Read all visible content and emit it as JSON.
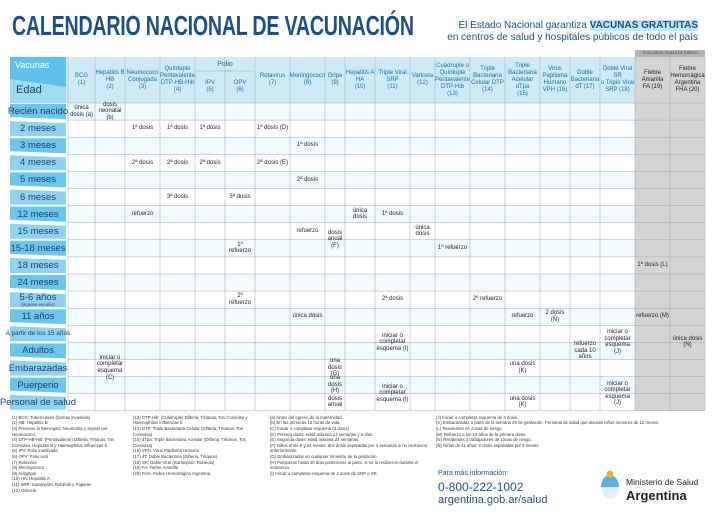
{
  "header": {
    "title": "CALENDARIO NACIONAL DE VACUNACIÓN",
    "subtitle_1": "El Estado Nacional garantiza",
    "subtitle_highlight": "VACUNAS GRATUITAS",
    "subtitle_2": "en centros de salud y hospitales públicos de todo el país"
  },
  "table": {
    "corner_top": "Vacunas",
    "corner_bottom": "Edad",
    "polio_group": "Polio",
    "risk_zone": "EXCLUSIVO ZONAS DE RIESGO",
    "columns": [
      [
        "BCG",
        "(1)"
      ],
      [
        "Hepatitis B",
        "HB",
        "(2)"
      ],
      [
        "Neumococo",
        "Conjugada",
        "(3)"
      ],
      [
        "Quíntuple",
        "Pentavalente",
        "DTP-HB-Hib",
        "(4)"
      ],
      [
        "IPV",
        "(5)"
      ],
      [
        "OPV",
        "(6)"
      ],
      [
        "Rotavirus",
        "(7)"
      ],
      [
        "Meningococo",
        "(8)"
      ],
      [
        "Gripe",
        "(9)"
      ],
      [
        "Hepatitis A",
        "HA",
        "(10)"
      ],
      [
        "Triple Viral",
        "SRP",
        "(11)"
      ],
      [
        "Varicela",
        "(12)"
      ],
      [
        "Cuádruple o",
        "Quíntuple",
        "Pentavalente",
        "DTP-Hib (13)"
      ],
      [
        "Triple",
        "Bacteriana",
        "Celular DTP",
        "(14)"
      ],
      [
        "Triple",
        "Bacteriana",
        "Acelular dTpa",
        "(15)"
      ],
      [
        "Virus",
        "Papiloma",
        "Humano",
        "VPH (16)"
      ],
      [
        "Doble",
        "Bacteriana",
        "dT (17)"
      ],
      [
        "Doble Viral",
        "SR",
        "o Triple Viral",
        "SRP (18)"
      ],
      [
        "Fiebre",
        "Amarilla",
        "FA (19)"
      ],
      [
        "Fiebre",
        "Hemorrágica",
        "Argentina",
        "FHA (20)"
      ]
    ],
    "rows": [
      {
        "label": "Recién nacido",
        "cells": [
          "única dosis (a)",
          "dosis neonatal (b)",
          null,
          null,
          null,
          null,
          null,
          null,
          null,
          null,
          null,
          null,
          null,
          null,
          null,
          null,
          null,
          null,
          null,
          null
        ]
      },
      {
        "label": "2 meses",
        "cells": [
          null,
          null,
          "1ª dosis",
          "1ª dosis",
          "1ª dosis",
          null,
          "1ª dosis (D)",
          null,
          null,
          null,
          null,
          null,
          null,
          null,
          null,
          null,
          null,
          null,
          null,
          null
        ]
      },
      {
        "label": "3 meses",
        "cells": [
          null,
          null,
          null,
          null,
          null,
          null,
          null,
          "1ª dosis",
          null,
          null,
          null,
          null,
          null,
          null,
          null,
          null,
          null,
          null,
          null,
          null
        ]
      },
      {
        "label": "4 meses",
        "cells": [
          null,
          null,
          "2ª dosis",
          "2ª dosis",
          "2ª dosis",
          null,
          "2ª dosis (E)",
          null,
          null,
          null,
          null,
          null,
          null,
          null,
          null,
          null,
          null,
          null,
          null,
          null
        ]
      },
      {
        "label": "5 meses",
        "cells": [
          null,
          null,
          null,
          null,
          null,
          null,
          null,
          "2ª dosis",
          null,
          null,
          null,
          null,
          null,
          null,
          null,
          null,
          null,
          null,
          null,
          null
        ]
      },
      {
        "label": "6 meses",
        "cells": [
          null,
          null,
          null,
          "3ª dosis",
          null,
          "3ª dosis",
          null,
          null,
          null,
          null,
          null,
          null,
          null,
          null,
          null,
          null,
          null,
          null,
          null,
          null
        ]
      },
      {
        "label": "12 meses",
        "cells": [
          null,
          null,
          "refuerzo",
          null,
          null,
          null,
          null,
          null,
          null,
          "única dosis",
          "1ª dosis",
          null,
          null,
          null,
          null,
          null,
          null,
          null,
          null,
          null
        ]
      },
      {
        "label": "15 meses",
        "cells": [
          null,
          null,
          null,
          null,
          null,
          null,
          null,
          "refuerzo",
          "dosis anual (F)",
          null,
          null,
          "única dosis",
          null,
          null,
          null,
          null,
          null,
          null,
          null,
          null
        ]
      },
      {
        "label": "15-18 meses",
        "cells": [
          null,
          null,
          null,
          null,
          null,
          "1º refuerzo",
          null,
          null,
          null,
          null,
          null,
          null,
          "1º refuerzo",
          null,
          null,
          null,
          null,
          null,
          null,
          null
        ]
      },
      {
        "label": "18 meses",
        "cells": [
          null,
          null,
          null,
          null,
          null,
          null,
          null,
          null,
          null,
          null,
          null,
          null,
          null,
          null,
          null,
          null,
          null,
          null,
          "1ª dosis (L)",
          null
        ]
      },
      {
        "label": "24 meses",
        "cells": [
          null,
          null,
          null,
          null,
          null,
          null,
          null,
          null,
          null,
          null,
          null,
          null,
          null,
          null,
          null,
          null,
          null,
          null,
          null,
          null
        ]
      },
      {
        "label": "5-6 años",
        "sublabel": "(ingreso escolar)",
        "cells": [
          null,
          null,
          null,
          null,
          null,
          "2º refuerzo",
          null,
          null,
          null,
          null,
          "2ª dosis",
          null,
          null,
          "2º refuerzo",
          null,
          null,
          null,
          null,
          null,
          null
        ]
      },
      {
        "label": "11 años",
        "cells": [
          null,
          null,
          null,
          null,
          null,
          null,
          null,
          "única dosis",
          null,
          null,
          null,
          null,
          null,
          null,
          "refuerzo",
          "2 dosis (Ñ)",
          null,
          null,
          "refuerzo (M)",
          null
        ]
      },
      {
        "label": "A partir de los 15 años",
        "cells": [
          null,
          null,
          null,
          null,
          null,
          null,
          null,
          null,
          null,
          null,
          "iniciar o completar esquema (I)",
          null,
          null,
          null,
          null,
          null,
          null,
          "iniciar o completar esquema (J)",
          null,
          "única dosis (N)"
        ]
      },
      {
        "label": "Adultos",
        "cells": [
          null,
          "iniciar o completar esquema (C)",
          null,
          null,
          null,
          null,
          null,
          null,
          null,
          null,
          null,
          null,
          null,
          null,
          null,
          null,
          "refuerzo cada 10 años",
          null,
          null,
          null
        ]
      },
      {
        "label": "Embarazadas",
        "cells": [
          null,
          null,
          null,
          null,
          null,
          null,
          null,
          null,
          "una dosis (G)",
          null,
          null,
          null,
          null,
          null,
          "una dosis (K)",
          null,
          null,
          null,
          null,
          null
        ]
      },
      {
        "label": "Puerperio",
        "cells": [
          null,
          null,
          null,
          null,
          null,
          null,
          null,
          null,
          "una dosis (H)",
          null,
          "iniciar o completar esquema (I)",
          null,
          null,
          null,
          null,
          null,
          null,
          "iniciar o completar esquema (J)",
          null,
          null
        ]
      },
      {
        "label": "Personal de salud",
        "cells": [
          null,
          null,
          null,
          null,
          null,
          null,
          null,
          null,
          "dosis anual",
          null,
          null,
          null,
          null,
          null,
          "una dosis (K)",
          null,
          null,
          null,
          null,
          null
        ]
      }
    ]
  },
  "footnotes": [
    [
      "(1) BCG: Tuberculosis (formas invasivas)",
      "(2) HB: Hepatitis B",
      "(3) Previene la Meningitis, Neumonía y Sepsis por Neumococo.",
      "(4) DTP-HB-Hib: (Pentavalente) Difteria, Tétanos, Tos Convulsa, Hepatitis B y Haemophilus influenzae b",
      "(5) IPV: Polio inactivada",
      "(6) OPV: Polio oral",
      "(7) Rotavirus",
      "(8) Meningococo",
      "(9) Antigripal",
      "(10) HA: Hepatitis A",
      "(11) SRP: Sarampión, Rubéola y Paperas",
      "(12) Varicela"
    ],
    [
      "(13) DTP-Hib: (Cuádruple) Difteria, Tétanos, Tos Convulsa y Haemophilus influenzae b",
      "(14) DTP: Triple Bacteriana Celular (Difteria, Tétanos, Tos Convulsa)",
      "(15) dTpa: Triple Bacteriana Acelular (Difteria, Tétanos, Tos Convulsa)",
      "(16) VPH: Virus Papiloma Humano",
      "(17) dT: Doble Bacteriana (Difteria, Tétanos)",
      "(18) SR: Doble Viral (Sarampión, Rubéola)",
      "(19) FA: Fiebre Amarilla",
      "(20) FHA: Fiebre Hemorrágica Argentina"
    ],
    [
      "(a) Antes del egreso de la maternidad.",
      "(b) En las primeras 12 horas de vida.",
      "(C) Iniciar o completar esquema (3 dosis).",
      "(D) Primera dosis: edad máxima 14 semanas y 6 días.",
      "(E) Segunda dosis: edad máxima 24 semanas.",
      "(F) Niños entre 6 y 24 meses: dos dosis separadas por 4 semanas si no recibieron anteriormente.",
      "(G) Embarazadas en cualquier trimestre de la gestación.",
      "(H) Puérperas hasta 10 días posteriores al parto, si no la recibieron durante el embarazo.",
      "(I) Iniciar o completar esquema de 2 dosis de SRP o SR."
    ],
    [
      "(J) Iniciar o completar esquema de 3 dosis.",
      "(K) Embarazadas a partir de la semana 20 de gestación. Personal de salud que atiende niños menores de 12 meses.",
      "(L) Residentes en zonas de riesgo.",
      "(M) Refuerzo a los 10 años de la primera dosis.",
      "(N) Residentes o trabajadores de zonas de riesgo.",
      "(Ñ) Niñas de 11 años: 2 dosis separadas por 6 meses."
    ]
  ],
  "footer": {
    "info_label": "Para más información:",
    "phone": "0-800-222-1002",
    "url": "argentina.gob.ar/salud",
    "ministry": "Ministerio de Salud",
    "country": "Argentina"
  }
}
